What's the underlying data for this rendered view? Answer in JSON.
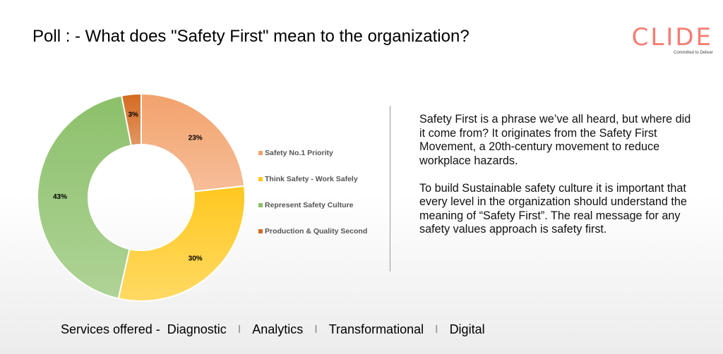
{
  "title": "Poll : - What does \"Safety First\" mean to the organization?",
  "logo": {
    "text": "CLIDE",
    "tagline": "Committed to Deliver",
    "color": "#f4675a"
  },
  "chart_data": {
    "type": "pie",
    "donut": true,
    "categories": [
      "Safety No.1 Priority",
      "Think Safety - Work Safely",
      "Represent Safety Culture",
      "Production & Quality Second"
    ],
    "values": [
      23,
      30,
      43,
      3
    ],
    "data_labels": [
      "23%",
      "30%",
      "43%",
      "3%"
    ],
    "colors": [
      "#f2a26c",
      "#ffc820",
      "#8cc06a",
      "#d46a20"
    ],
    "legend_position": "right"
  },
  "body": {
    "paragraphs": [
      "Safety First is a phrase we’ve all heard, but where did it come from? It originates from the Safety First Movement, a 20th-century movement to reduce workplace hazards.",
      "To build Sustainable safety culture it is important that every level in the organization should understand the meaning of “Safety First”. The real message for any safety values approach is safety first."
    ]
  },
  "footer": {
    "lead": "Services offered -",
    "items": [
      "Diagnostic",
      "Analytics",
      "Transformational",
      "Digital"
    ],
    "separator": "I"
  }
}
